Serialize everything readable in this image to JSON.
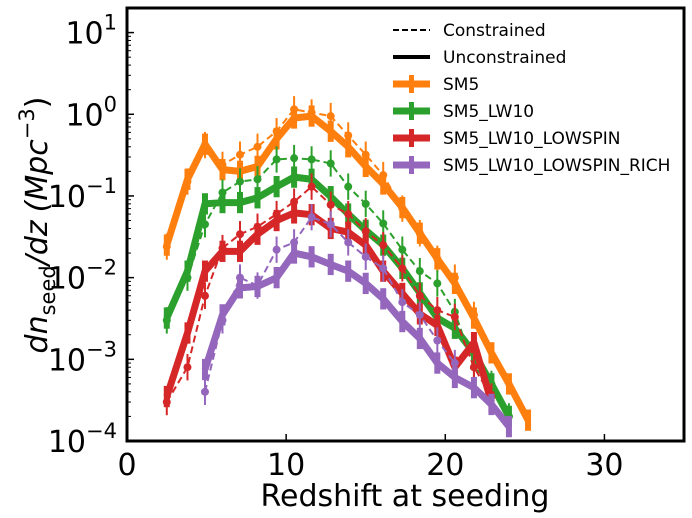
{
  "chart_data": {
    "type": "line",
    "xlabel": "Redshift at seeding",
    "ylabel": "dn_seed/dz (Mpc^-3)",
    "ylabel_parts": {
      "d1": "dn",
      "sub": "seed",
      "rest": "/dz",
      "unit_open": "(Mpc",
      "unit_exp": "−3",
      "unit_close": ")"
    },
    "xlim": [
      0,
      35
    ],
    "ylim": [
      0.0001,
      20
    ],
    "yscale": "log",
    "x_ticks": [
      0,
      10,
      20,
      30
    ],
    "x_tick_labels": [
      "0",
      "10",
      "20",
      "30"
    ],
    "y_ticks": [
      0.0001,
      0.001,
      0.01,
      0.1,
      1,
      10
    ],
    "y_tick_labels": [
      {
        "base": "10",
        "exp": "−4"
      },
      {
        "base": "10",
        "exp": "−3"
      },
      {
        "base": "10",
        "exp": "−2"
      },
      {
        "base": "10",
        "exp": "−1"
      },
      {
        "base": "10",
        "exp": "0"
      },
      {
        "base": "10",
        "exp": "1"
      }
    ],
    "legend_position": "top-right",
    "legend_style_entries": [
      {
        "label": "Constrained",
        "style": "dashed",
        "color": "#000000"
      },
      {
        "label": "Unconstrained",
        "style": "solid",
        "color": "#000000"
      }
    ],
    "series": [
      {
        "name": "SM5",
        "color": "#ff7f0e",
        "unconstrained": {
          "x": [
            2.5,
            3.8,
            4.9,
            6.0,
            7.1,
            8.2,
            9.4,
            10.5,
            11.6,
            12.8,
            13.9,
            15.0,
            16.1,
            17.3,
            18.4,
            19.5,
            20.6,
            21.8,
            22.9,
            24.0,
            25.2
          ],
          "y": [
            0.025,
            0.16,
            0.43,
            0.21,
            0.2,
            0.23,
            0.5,
            0.9,
            0.95,
            0.62,
            0.4,
            0.23,
            0.14,
            0.072,
            0.035,
            0.017,
            0.0085,
            0.0032,
            0.0012,
            0.0005,
            0.00018
          ]
        },
        "constrained": {
          "x": [
            2.5,
            3.8,
            4.9,
            6.0,
            7.1,
            8.2,
            9.4,
            10.5,
            11.6,
            12.8,
            13.9,
            15.0,
            16.1,
            17.3,
            18.4,
            19.5,
            20.6,
            21.8
          ],
          "y": [
            0.024,
            0.15,
            0.42,
            0.24,
            0.32,
            0.4,
            0.62,
            1.15,
            1.05,
            0.95,
            0.55,
            0.32,
            0.18,
            0.07,
            0.035,
            0.017,
            0.01,
            0.0035
          ]
        }
      },
      {
        "name": "SM5_LW10",
        "color": "#2ca02c",
        "unconstrained": {
          "x": [
            2.5,
            3.8,
            4.9,
            6.0,
            7.1,
            8.2,
            9.4,
            10.5,
            11.6,
            12.8,
            13.9,
            15.0,
            16.1,
            17.3,
            18.4,
            19.5,
            20.6,
            21.8,
            22.9,
            24.0
          ],
          "y": [
            0.0032,
            0.012,
            0.08,
            0.083,
            0.083,
            0.095,
            0.13,
            0.17,
            0.16,
            0.098,
            0.06,
            0.038,
            0.025,
            0.013,
            0.0065,
            0.0032,
            0.0024,
            0.0012,
            0.0005,
            0.0002
          ]
        },
        "constrained": {
          "x": [
            2.5,
            3.8,
            4.9,
            6.0,
            7.1,
            8.2,
            9.4,
            10.5,
            11.6,
            12.8,
            13.9,
            15.0,
            16.1,
            17.3,
            18.4,
            19.5,
            20.6,
            21.8,
            22.9,
            24.0
          ],
          "y": [
            0.003,
            0.01,
            0.045,
            0.11,
            0.15,
            0.16,
            0.28,
            0.29,
            0.28,
            0.25,
            0.13,
            0.08,
            0.046,
            0.022,
            0.012,
            0.0085,
            0.0038,
            0.0008,
            0.0005,
            0.0002
          ]
        }
      },
      {
        "name": "SM5_LW10_LOWSPIN",
        "color": "#d62728",
        "unconstrained": {
          "x": [
            2.5,
            3.8,
            4.9,
            6.0,
            7.1,
            8.2,
            9.4,
            10.5,
            11.6,
            12.8,
            13.9,
            15.0,
            16.1,
            17.3,
            18.4,
            19.5,
            20.6,
            21.8,
            22.9
          ],
          "y": [
            0.00035,
            0.0021,
            0.012,
            0.021,
            0.021,
            0.034,
            0.05,
            0.062,
            0.059,
            0.04,
            0.036,
            0.025,
            0.012,
            0.0064,
            0.0036,
            0.0026,
            0.0008,
            0.0016,
            0.0003
          ]
        },
        "constrained": {
          "x": [
            2.5,
            3.8,
            4.9,
            6.0,
            7.1,
            8.2,
            9.4,
            10.5,
            11.6,
            12.8,
            13.9,
            15.0,
            16.1,
            17.3,
            18.4,
            19.5,
            20.6,
            21.8,
            22.9
          ],
          "y": [
            0.0003,
            0.0008,
            0.006,
            0.023,
            0.034,
            0.042,
            0.06,
            0.085,
            0.13,
            0.078,
            0.06,
            0.037,
            0.025,
            0.013,
            0.006,
            0.004,
            0.0033,
            0.0008,
            0.00035
          ]
        }
      },
      {
        "name": "SM5_LW10_LOWSPIN_RICH",
        "color": "#9467bd",
        "unconstrained": {
          "x": [
            4.9,
            6.0,
            7.1,
            8.2,
            9.4,
            10.5,
            11.6,
            12.8,
            13.9,
            15.0,
            16.1,
            17.3,
            18.4,
            19.5,
            20.6,
            21.8,
            22.9,
            24.0
          ],
          "y": [
            0.00075,
            0.0035,
            0.0075,
            0.0078,
            0.01,
            0.02,
            0.018,
            0.0145,
            0.012,
            0.0085,
            0.0055,
            0.0029,
            0.0018,
            0.0009,
            0.0006,
            0.00045,
            0.00028,
            0.00015
          ]
        },
        "constrained": {
          "x": [
            4.9,
            6.0,
            7.1,
            8.2,
            9.4,
            10.5,
            11.6,
            12.8,
            13.9,
            15.0,
            16.1,
            17.3,
            18.4,
            19.5,
            20.6
          ],
          "y": [
            0.0004,
            0.003,
            0.01,
            0.008,
            0.022,
            0.027,
            0.055,
            0.045,
            0.027,
            0.018,
            0.013,
            0.005,
            0.0035,
            0.0017,
            0.0009
          ]
        }
      }
    ]
  }
}
